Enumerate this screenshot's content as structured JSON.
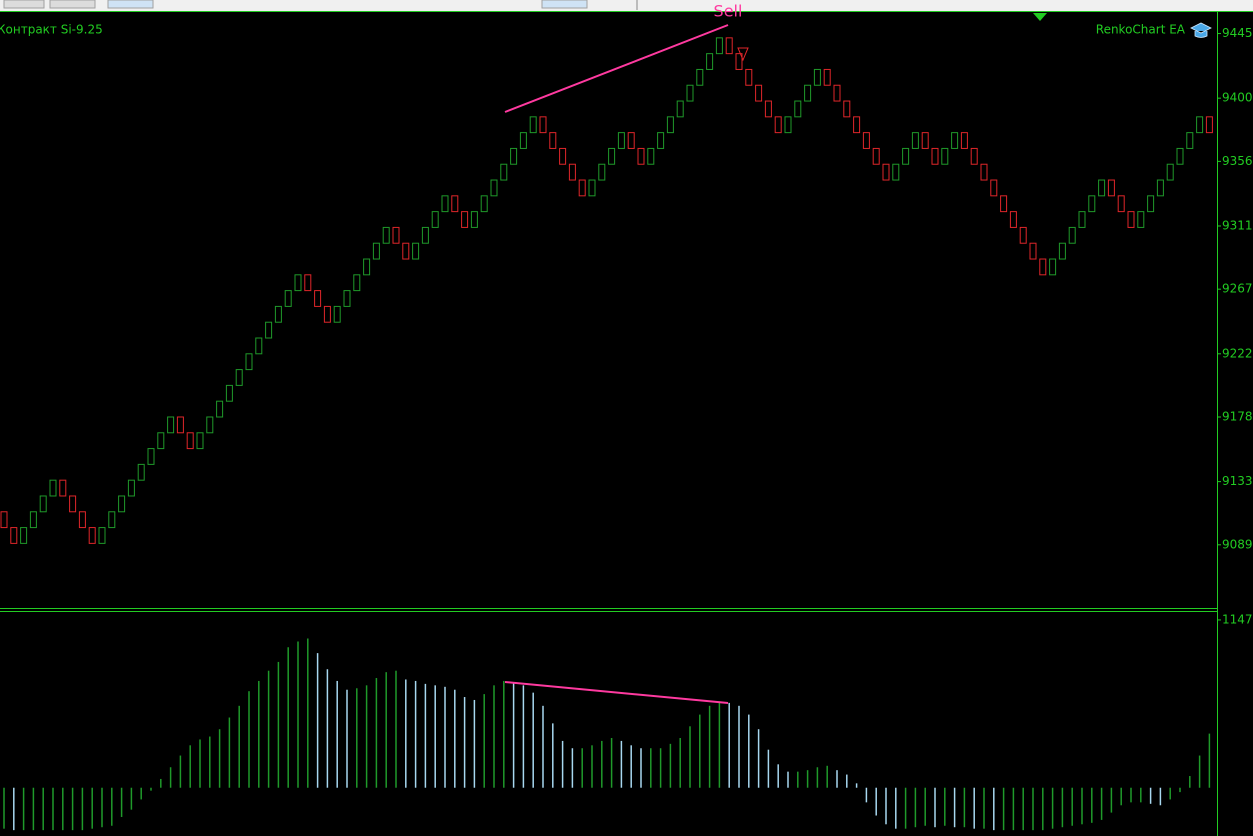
{
  "chart_data": [
    {
      "type": "renko",
      "title": "Контракт Si-9.25",
      "label": "RenkoChart EA",
      "annotation": "Sell",
      "brick_size": 11,
      "up_color": "#1f9a2a",
      "down_color": "#e0262a",
      "ylim": [
        9045,
        9460
      ],
      "yticks": [
        9445,
        9400,
        9356,
        9311,
        9267,
        9222,
        9178,
        9133,
        9089
      ],
      "values": [
        9101,
        9090,
        9101,
        9112,
        9123,
        9134,
        9123,
        9112,
        9101,
        9090,
        9101,
        9112,
        9123,
        9134,
        9145,
        9156,
        9167,
        9178,
        9167,
        9156,
        9167,
        9178,
        9189,
        9200,
        9211,
        9222,
        9233,
        9244,
        9255,
        9266,
        9277,
        9266,
        9255,
        9244,
        9255,
        9266,
        9277,
        9288,
        9299,
        9310,
        9299,
        9288,
        9299,
        9310,
        9321,
        9332,
        9321,
        9310,
        9321,
        9332,
        9343,
        9354,
        9365,
        9376,
        9387,
        9376,
        9365,
        9354,
        9343,
        9332,
        9343,
        9354,
        9365,
        9376,
        9365,
        9354,
        9365,
        9376,
        9387,
        9398,
        9409,
        9420,
        9431,
        9442,
        9431,
        9420,
        9409,
        9398,
        9387,
        9376,
        9387,
        9398,
        9409,
        9420,
        9409,
        9398,
        9387,
        9376,
        9365,
        9354,
        9343,
        9354,
        9365,
        9376,
        9365,
        9354,
        9365,
        9376,
        9365,
        9354,
        9343,
        9332,
        9321,
        9310,
        9299,
        9288,
        9277,
        9288,
        9299,
        9310,
        9321,
        9332,
        9343,
        9332,
        9321,
        9310,
        9321,
        9332,
        9343,
        9354,
        9365,
        9376,
        9387,
        9376
      ]
    },
    {
      "type": "histogram",
      "rise_color": "#1f9a2a",
      "fall_color": "#a8d8f0",
      "ylim": [
        -330,
        1215
      ],
      "yticks": [
        1147
      ],
      "values": [
        -280,
        -290,
        -290,
        -290,
        -290,
        -290,
        -290,
        -290,
        -290,
        -280,
        -270,
        -260,
        -200,
        -150,
        -80,
        -20,
        60,
        140,
        220,
        290,
        330,
        350,
        400,
        480,
        560,
        660,
        730,
        800,
        860,
        960,
        1000,
        1020,
        920,
        810,
        730,
        670,
        680,
        700,
        750,
        790,
        800,
        740,
        730,
        710,
        700,
        690,
        670,
        620,
        600,
        640,
        700,
        730,
        720,
        700,
        650,
        560,
        440,
        320,
        270,
        270,
        290,
        320,
        340,
        320,
        290,
        270,
        270,
        270,
        300,
        340,
        420,
        500,
        560,
        590,
        580,
        560,
        500,
        400,
        260,
        160,
        110,
        110,
        120,
        140,
        150,
        120,
        90,
        30,
        -100,
        -190,
        -250,
        -280,
        -280,
        -270,
        -260,
        -270,
        -260,
        -270,
        -270,
        -280,
        -280,
        -290,
        -290,
        -290,
        -290,
        -290,
        -290,
        -280,
        -270,
        -260,
        -250,
        -240,
        -220,
        -170,
        -120,
        -100,
        -100,
        -110,
        -120,
        -80,
        -30,
        80,
        220,
        370
      ]
    }
  ]
}
